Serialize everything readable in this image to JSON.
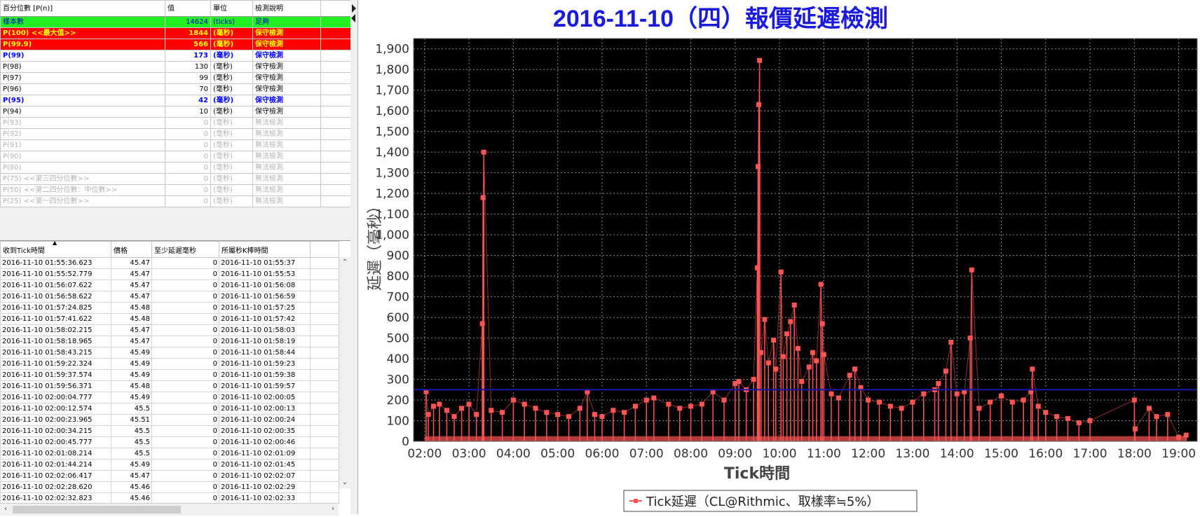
{
  "stats_table": {
    "headers": [
      "百分位數 [P(n)]",
      "值",
      "單位",
      "檢測說明"
    ],
    "rows": [
      {
        "label": "樣本數",
        "value": "14624",
        "unit": "(ticks)",
        "note": "足夠",
        "style": "green"
      },
      {
        "label": "P(100)  <<最大值>>",
        "value": "1844",
        "unit": "(毫秒)",
        "note": "保守檢測",
        "style": "red"
      },
      {
        "label": "P(99.9)",
        "value": "566",
        "unit": "(毫秒)",
        "note": "保守檢測",
        "style": "red"
      },
      {
        "label": "P(99)",
        "value": "173",
        "unit": "(毫秒)",
        "note": "保守檢測",
        "style": "blue"
      },
      {
        "label": "P(98)",
        "value": "130",
        "unit": "(毫秒)",
        "note": "保守檢測",
        "style": "norm"
      },
      {
        "label": "P(97)",
        "value": "99",
        "unit": "(毫秒)",
        "note": "保守檢測",
        "style": "norm"
      },
      {
        "label": "P(96)",
        "value": "70",
        "unit": "(毫秒)",
        "note": "保守檢測",
        "style": "norm"
      },
      {
        "label": "P(95)",
        "value": "42",
        "unit": "(毫秒)",
        "note": "保守檢測",
        "style": "blue"
      },
      {
        "label": "P(94)",
        "value": "10",
        "unit": "(毫秒)",
        "note": "保守檢測",
        "style": "norm"
      },
      {
        "label": "P(93)",
        "value": "0",
        "unit": "(毫秒)",
        "note": "無法檢測",
        "style": "gray"
      },
      {
        "label": "P(92)",
        "value": "0",
        "unit": "(毫秒)",
        "note": "無法檢測",
        "style": "gray"
      },
      {
        "label": "P(91)",
        "value": "0",
        "unit": "(毫秒)",
        "note": "無法檢測",
        "style": "gray"
      },
      {
        "label": "P(90)",
        "value": "0",
        "unit": "(毫秒)",
        "note": "無法檢測",
        "style": "gray"
      },
      {
        "label": "P(80)",
        "value": "0",
        "unit": "(毫秒)",
        "note": "無法檢測",
        "style": "gray"
      },
      {
        "label": "P(75)  <<第三四分位數>>",
        "value": "0",
        "unit": "(毫秒)",
        "note": "無法檢測",
        "style": "gray"
      },
      {
        "label": "P(50)  <<第二四分位數：中位數>>",
        "value": "0",
        "unit": "(毫秒)",
        "note": "無法檢測",
        "style": "gray"
      },
      {
        "label": "P(25)  <<第一四分位數>>",
        "value": "0",
        "unit": "(毫秒)",
        "note": "無法檢測",
        "style": "gray"
      }
    ]
  },
  "tick_table": {
    "headers": [
      "收到Tick時間",
      "價格",
      "至少延遲毫秒",
      "所屬秒K棒時間"
    ],
    "sort_indicator": "▲",
    "rows": [
      [
        "2016-11-10 01:55:36.623",
        "45.47",
        "0",
        "2016-11-10 01:55:37"
      ],
      [
        "2016-11-10 01:55:52.779",
        "45.47",
        "0",
        "2016-11-10 01:55:53"
      ],
      [
        "2016-11-10 01:56:07.622",
        "45.47",
        "0",
        "2016-11-10 01:56:08"
      ],
      [
        "2016-11-10 01:56:58.622",
        "45.47",
        "0",
        "2016-11-10 01:56:59"
      ],
      [
        "2016-11-10 01:57:24.825",
        "45.48",
        "0",
        "2016-11-10 01:57:25"
      ],
      [
        "2016-11-10 01:57:41.622",
        "45.48",
        "0",
        "2016-11-10 01:57:42"
      ],
      [
        "2016-11-10 01:58:02.215",
        "45.47",
        "0",
        "2016-11-10 01:58:03"
      ],
      [
        "2016-11-10 01:58:18.965",
        "45.47",
        "0",
        "2016-11-10 01:58:19"
      ],
      [
        "2016-11-10 01:58:43.215",
        "45.49",
        "0",
        "2016-11-10 01:58:44"
      ],
      [
        "2016-11-10 01:59:22.324",
        "45.49",
        "0",
        "2016-11-10 01:59:23"
      ],
      [
        "2016-11-10 01:59:37.574",
        "45.49",
        "0",
        "2016-11-10 01:59:38"
      ],
      [
        "2016-11-10 01:59:56.371",
        "45.48",
        "0",
        "2016-11-10 01:59:57"
      ],
      [
        "2016-11-10 02:00:04.777",
        "45.49",
        "0",
        "2016-11-10 02:00:05"
      ],
      [
        "2016-11-10 02:00:12.574",
        "45.5",
        "0",
        "2016-11-10 02:00:13"
      ],
      [
        "2016-11-10 02:00:23.965",
        "45.51",
        "0",
        "2016-11-10 02:00:24"
      ],
      [
        "2016-11-10 02:00:34.215",
        "45.5",
        "0",
        "2016-11-10 02:00:35"
      ],
      [
        "2016-11-10 02:00:45.777",
        "45.5",
        "0",
        "2016-11-10 02:00:46"
      ],
      [
        "2016-11-10 02:01:08.214",
        "45.5",
        "0",
        "2016-11-10 02:01:09"
      ],
      [
        "2016-11-10 02:01:44.214",
        "45.49",
        "0",
        "2016-11-10 02:01:45"
      ],
      [
        "2016-11-10 02:02:06.417",
        "45.47",
        "0",
        "2016-11-10 02:02:07"
      ],
      [
        "2016-11-10 02:02:28.620",
        "45.46",
        "0",
        "2016-11-10 02:02:29"
      ],
      [
        "2016-11-10 02:02:32.823",
        "45.46",
        "0",
        "2016-11-10 02:02:33"
      ]
    ]
  },
  "chart_data": {
    "type": "line",
    "title": "2016-11-10（四）報價延遲檢測",
    "xlabel": "Tick時間",
    "ylabel": "延遲（毫秒）",
    "ylim": [
      0,
      1950
    ],
    "xlim": [
      "01:45",
      "19:25"
    ],
    "yticks": [
      "0",
      "100",
      "200",
      "300",
      "400",
      "500",
      "600",
      "700",
      "800",
      "900",
      "1,000",
      "1,100",
      "1,200",
      "1,300",
      "1,400",
      "1,500",
      "1,600",
      "1,700",
      "1,800",
      "1,900"
    ],
    "xticks": [
      "02:00",
      "03:00",
      "04:00",
      "05:00",
      "06:00",
      "07:00",
      "08:00",
      "09:00",
      "10:00",
      "11:00",
      "12:00",
      "13:00",
      "14:00",
      "15:00",
      "16:00",
      "17:00",
      "18:00",
      "19:00"
    ],
    "grid": true,
    "background": "#000000",
    "series_color": "#ff5555",
    "threshold_color": "#1a1aaa",
    "threshold": 250,
    "legend_position": "bottom-center",
    "series": [
      {
        "name": "Tick延遲（CL@Rithmic、取樣率≒5%）",
        "points": [
          [
            "02:02",
            240
          ],
          [
            "02:05",
            130
          ],
          [
            "02:12",
            170
          ],
          [
            "02:20",
            180
          ],
          [
            "02:30",
            150
          ],
          [
            "02:40",
            120
          ],
          [
            "02:50",
            160
          ],
          [
            "03:00",
            180
          ],
          [
            "03:10",
            130
          ],
          [
            "03:18",
            570
          ],
          [
            "03:19",
            1180
          ],
          [
            "03:20",
            1400
          ],
          [
            "03:30",
            150
          ],
          [
            "03:45",
            140
          ],
          [
            "04:00",
            200
          ],
          [
            "04:15",
            180
          ],
          [
            "04:30",
            160
          ],
          [
            "04:45",
            140
          ],
          [
            "05:00",
            130
          ],
          [
            "05:15",
            120
          ],
          [
            "05:30",
            160
          ],
          [
            "05:40",
            240
          ],
          [
            "05:50",
            130
          ],
          [
            "06:00",
            120
          ],
          [
            "06:15",
            150
          ],
          [
            "06:30",
            140
          ],
          [
            "06:45",
            170
          ],
          [
            "07:00",
            200
          ],
          [
            "07:10",
            210
          ],
          [
            "07:30",
            180
          ],
          [
            "07:45",
            160
          ],
          [
            "08:00",
            170
          ],
          [
            "08:15",
            180
          ],
          [
            "08:30",
            240
          ],
          [
            "08:45",
            200
          ],
          [
            "09:00",
            280
          ],
          [
            "09:05",
            290
          ],
          [
            "09:15",
            250
          ],
          [
            "09:25",
            300
          ],
          [
            "09:30",
            840
          ],
          [
            "09:31",
            1330
          ],
          [
            "09:32",
            1630
          ],
          [
            "09:33",
            1844
          ],
          [
            "09:35",
            430
          ],
          [
            "09:40",
            590
          ],
          [
            "09:45",
            380
          ],
          [
            "09:52",
            490
          ],
          [
            "09:55",
            350
          ],
          [
            "10:02",
            820
          ],
          [
            "10:05",
            410
          ],
          [
            "10:10",
            520
          ],
          [
            "10:15",
            580
          ],
          [
            "10:20",
            660
          ],
          [
            "10:25",
            450
          ],
          [
            "10:30",
            290
          ],
          [
            "10:40",
            360
          ],
          [
            "10:45",
            430
          ],
          [
            "10:50",
            390
          ],
          [
            "10:56",
            760
          ],
          [
            "10:58",
            570
          ],
          [
            "11:00",
            420
          ],
          [
            "11:10",
            230
          ],
          [
            "11:20",
            210
          ],
          [
            "11:35",
            320
          ],
          [
            "11:42",
            350
          ],
          [
            "11:50",
            260
          ],
          [
            "12:00",
            200
          ],
          [
            "12:15",
            190
          ],
          [
            "12:30",
            170
          ],
          [
            "12:45",
            160
          ],
          [
            "13:00",
            190
          ],
          [
            "13:15",
            230
          ],
          [
            "13:30",
            250
          ],
          [
            "13:35",
            280
          ],
          [
            "13:45",
            340
          ],
          [
            "13:52",
            480
          ],
          [
            "14:00",
            230
          ],
          [
            "14:10",
            240
          ],
          [
            "14:18",
            500
          ],
          [
            "14:20",
            830
          ],
          [
            "14:30",
            160
          ],
          [
            "14:45",
            190
          ],
          [
            "15:00",
            220
          ],
          [
            "15:15",
            190
          ],
          [
            "15:30",
            200
          ],
          [
            "15:40",
            240
          ],
          [
            "15:42",
            350
          ],
          [
            "15:50",
            170
          ],
          [
            "16:00",
            140
          ],
          [
            "16:15",
            120
          ],
          [
            "16:30",
            110
          ],
          [
            "16:45",
            90
          ],
          [
            "17:00",
            100
          ],
          [
            "18:00",
            200
          ],
          [
            "18:01",
            60
          ],
          [
            "18:20",
            160
          ],
          [
            "18:30",
            120
          ],
          [
            "18:45",
            130
          ],
          [
            "19:00",
            20
          ],
          [
            "19:10",
            30
          ]
        ]
      }
    ]
  }
}
